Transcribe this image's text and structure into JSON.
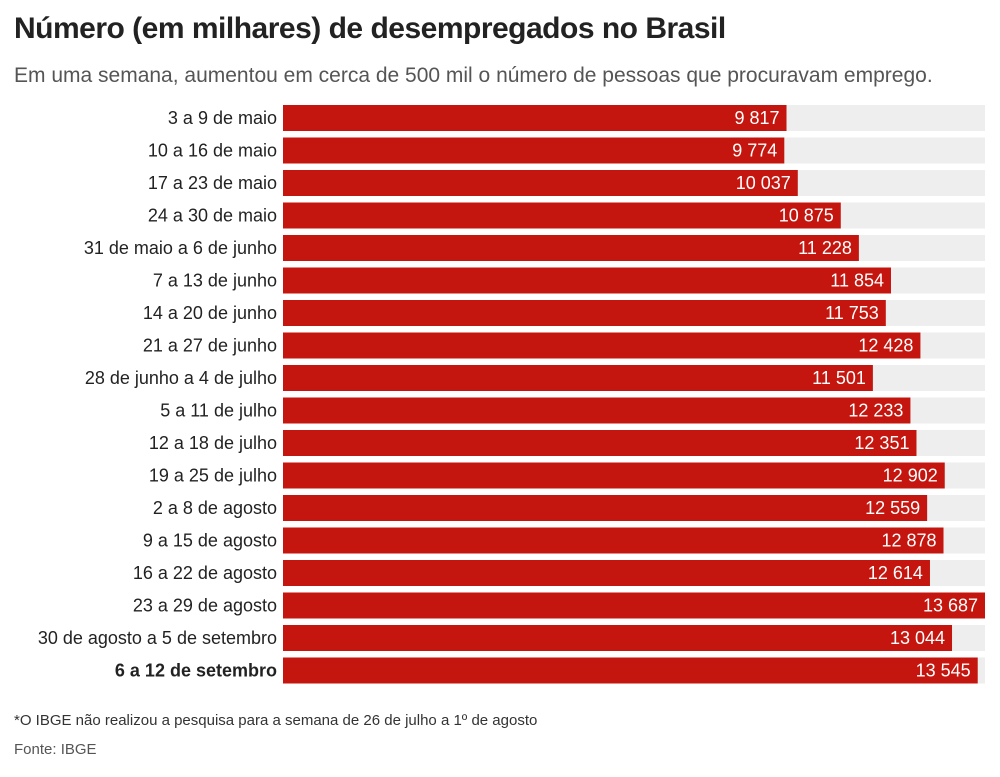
{
  "header": {
    "title": "Número (em milhares) de desempregados no Brasil",
    "subtitle": "Em uma semana, aumentou em cerca de 500 mil o número de pessoas que procuravam emprego."
  },
  "footer": {
    "note": "*O IBGE não realizou a pesquisa para a semana de 26 de julho a 1º de agosto",
    "source": "Fonte: IBGE"
  },
  "colors": {
    "bar": "#C4160E",
    "track": "#EEEEEE",
    "value_text": "#FFFFFF",
    "label_text": "#222222"
  },
  "chart_data": {
    "type": "bar",
    "orientation": "horizontal",
    "title": "Número (em milhares) de desempregados no Brasil",
    "xlim": [
      0,
      13687
    ],
    "categories": [
      "3 a 9 de maio",
      "10 a 16 de maio",
      "17 a 23 de maio",
      "24 a 30 de maio",
      "31 de maio a 6 de junho",
      "7 a 13 de junho",
      "14 a 20 de junho",
      "21 a 27 de junho",
      "28 de junho a 4 de julho",
      "5 a 11 de julho",
      "12 a 18 de julho",
      "19 a 25 de julho",
      "2 a 8 de agosto",
      "9 a 15 de agosto",
      "16 a 22 de agosto",
      "23 a 29 de agosto",
      "30 de agosto a 5 de setembro",
      "6 a 12 de setembro"
    ],
    "values": [
      9817,
      9774,
      10037,
      10875,
      11228,
      11854,
      11753,
      12428,
      11501,
      12233,
      12351,
      12902,
      12559,
      12878,
      12614,
      13687,
      13044,
      13545
    ],
    "value_labels": [
      "9 817",
      "9 774",
      "10 037",
      "10 875",
      "11 228",
      "11 854",
      "11 753",
      "12 428",
      "11 501",
      "12 233",
      "12 351",
      "12 902",
      "12 559",
      "12 878",
      "12 614",
      "13 687",
      "13 044",
      "13 545"
    ],
    "highlighted_category": "6 a 12 de setembro",
    "grid": false
  }
}
